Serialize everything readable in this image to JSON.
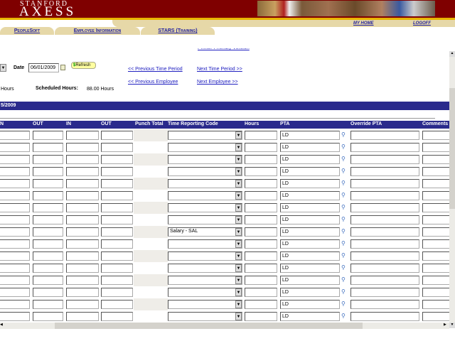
{
  "header": {
    "logo_top": "STANFORD",
    "logo_main": "AXESS",
    "my_home": "MY HOME",
    "logoff": "LOGOFF"
  },
  "tabs": [
    "PeopleSoft",
    "Employee Information",
    "STARS (Training)"
  ],
  "form": {
    "printer_friendly": "Printer Friendly Version",
    "date_label": "Date",
    "date_value": "06/01/2009",
    "refresh": "Refresh",
    "prev_period": "<< Previous Time Period",
    "next_period": "Next Time Period >>",
    "prev_employee": "<< Previous Employee",
    "next_employee": "Next Employee >>",
    "hours_partial": "Hours",
    "scheduled_label": "Scheduled Hours:",
    "scheduled_value": "88.00 Hours",
    "period_partial": "5/2009"
  },
  "columns": [
    "N",
    "OUT",
    "IN",
    "OUT",
    "Punch Total",
    "Time Reporting Code",
    "Hours",
    "PTA",
    "Override PTA",
    "Comments"
  ],
  "rows": [
    {
      "trc": "",
      "pta": "LD"
    },
    {
      "trc": "",
      "pta": "LD"
    },
    {
      "trc": "",
      "pta": "LD"
    },
    {
      "trc": "",
      "pta": "LD"
    },
    {
      "trc": "",
      "pta": "LD"
    },
    {
      "trc": "",
      "pta": "LD"
    },
    {
      "trc": "",
      "pta": "LD"
    },
    {
      "trc": "",
      "pta": "LD"
    },
    {
      "trc": "Salary - SAL",
      "pta": "LD"
    },
    {
      "trc": "",
      "pta": "LD"
    },
    {
      "trc": "",
      "pta": "LD"
    },
    {
      "trc": "",
      "pta": "LD"
    },
    {
      "trc": "",
      "pta": "LD"
    },
    {
      "trc": "",
      "pta": "LD"
    },
    {
      "trc": "",
      "pta": "LD"
    },
    {
      "trc": "",
      "pta": "LD"
    }
  ]
}
